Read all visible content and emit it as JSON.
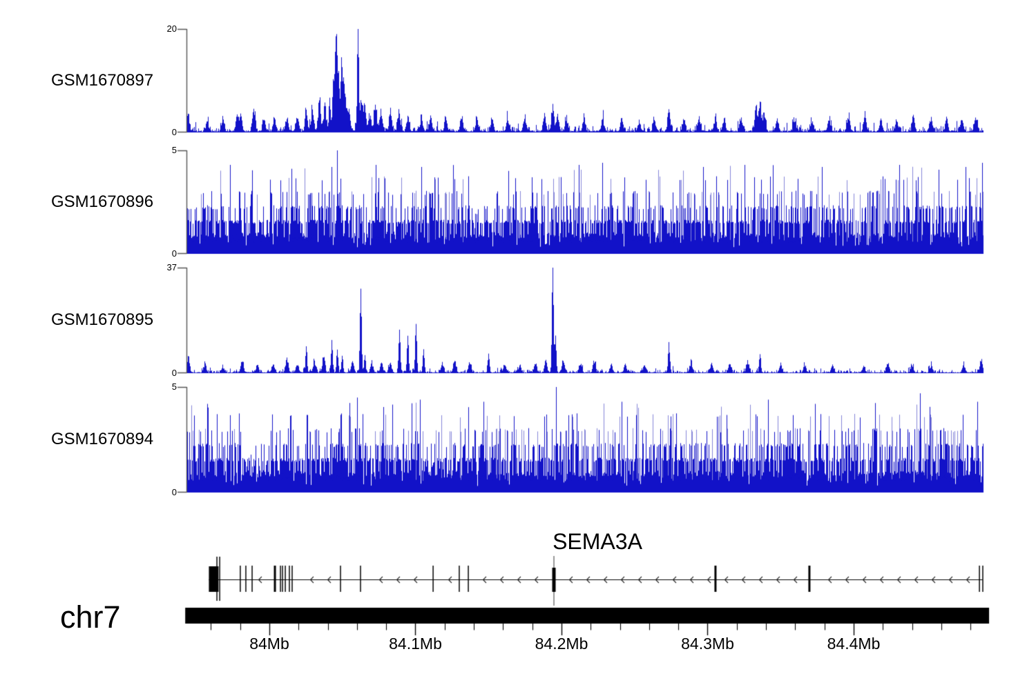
{
  "figure": {
    "background": "#ffffff"
  },
  "colors": {
    "bar_blue": "#1212c8",
    "bar_blue_light": "#8585d8",
    "axis_bracket": "#555555",
    "ink": "#000000",
    "anchor_line": "#777777"
  },
  "chromosome_axis": {
    "label": "chr7",
    "bar_start_mb": 83.9424,
    "bar_end_mb": 84.4927,
    "minor_tick_start_mb": 83.96,
    "minor_tick_interval_mb": 0.02,
    "minor_tick_count": 27,
    "ticks_major": [
      {
        "mb": 84.0,
        "label": "84Mb"
      },
      {
        "mb": 84.1,
        "label": "84.1Mb"
      },
      {
        "mb": 84.2,
        "label": "84.2Mb"
      },
      {
        "mb": 84.3,
        "label": "84.3Mb"
      },
      {
        "mb": 84.4,
        "label": "84.4Mb"
      }
    ]
  },
  "gene_track": {
    "name": "SEMA3A",
    "strand": "-",
    "gene_start_mb": 83.9586,
    "gene_end_mb": 84.4884,
    "utr_box": {
      "start_mb": 83.9586,
      "end_mb": 83.9652
    },
    "exons": [
      {
        "mb": 83.9641,
        "style": "tall"
      },
      {
        "mb": 83.966,
        "style": "tall"
      },
      {
        "mb": 83.9801,
        "style": "line"
      },
      {
        "mb": 83.9839,
        "style": "line"
      },
      {
        "mb": 83.9882,
        "style": "line"
      },
      {
        "mb": 84.0038,
        "style": "wide"
      },
      {
        "mb": 84.0076,
        "style": "line"
      },
      {
        "mb": 84.009,
        "style": "line"
      },
      {
        "mb": 84.0109,
        "style": "line"
      },
      {
        "mb": 84.0137,
        "style": "line"
      },
      {
        "mb": 84.0156,
        "style": "line"
      },
      {
        "mb": 84.0487,
        "style": "line"
      },
      {
        "mb": 84.0624,
        "style": "line"
      },
      {
        "mb": 84.1121,
        "style": "line"
      },
      {
        "mb": 84.13,
        "style": "line"
      },
      {
        "mb": 84.1362,
        "style": "line"
      },
      {
        "mb": 84.1948,
        "style": "anchor"
      },
      {
        "mb": 84.3054,
        "style": "wide"
      },
      {
        "mb": 84.3697,
        "style": "wide"
      },
      {
        "mb": 84.4861,
        "style": "line"
      },
      {
        "mb": 84.4884,
        "style": "line"
      }
    ]
  },
  "chart_data": {
    "type": "area",
    "x_axis": {
      "unit": "Mb",
      "chromosome": "chr7",
      "view_start_mb": 83.9433,
      "view_end_mb": 84.4889
    },
    "legend": "none",
    "grid": false,
    "tracks": [
      {
        "label": "GSM1670897",
        "type": "profile",
        "ylim": [
          0,
          20
        ],
        "ymax_label": "20",
        "ymin_label": "0",
        "seed": 11,
        "peaks": [
          [
            83.9442,
            3.2
          ],
          [
            83.9574,
            1.6
          ],
          [
            83.9679,
            2.2
          ],
          [
            83.9778,
            3.0
          ],
          [
            83.9801,
            2.6
          ],
          [
            83.9891,
            4.3
          ],
          [
            83.9962,
            2.0
          ],
          [
            84.0033,
            2.6
          ],
          [
            84.0118,
            2.3
          ],
          [
            84.0189,
            2.9
          ],
          [
            84.0251,
            3.4
          ],
          [
            84.0293,
            4.2
          ],
          [
            84.034,
            5.3
          ],
          [
            84.0378,
            4.6
          ],
          [
            84.0411,
            6.5
          ],
          [
            84.0435,
            9.0
          ],
          [
            84.0449,
            12.0
          ],
          [
            84.0459,
            16.0
          ],
          [
            84.0473,
            11.0
          ],
          [
            84.0492,
            14.0
          ],
          [
            84.0506,
            8.0
          ],
          [
            84.052,
            5.5
          ],
          [
            84.0544,
            3.5
          ],
          [
            84.0605,
            20.0
          ],
          [
            84.0629,
            5.5
          ],
          [
            84.0652,
            4.0
          ],
          [
            84.0686,
            3.0
          ],
          [
            84.0723,
            4.4
          ],
          [
            84.0761,
            3.2
          ],
          [
            84.0827,
            3.4
          ],
          [
            84.0884,
            3.7
          ],
          [
            84.0946,
            2.8
          ],
          [
            84.104,
            2.3
          ],
          [
            84.1102,
            2.7
          ],
          [
            84.1206,
            2.2
          ],
          [
            84.1314,
            2.4
          ],
          [
            84.1418,
            2.1
          ],
          [
            84.1522,
            2.3
          ],
          [
            84.1631,
            2.1
          ],
          [
            84.1749,
            2.4
          ],
          [
            84.1882,
            3.0
          ],
          [
            84.1938,
            4.6
          ],
          [
            84.1972,
            3.2
          ],
          [
            84.2033,
            2.2
          ],
          [
            84.2151,
            1.9
          ],
          [
            84.2279,
            2.1
          ],
          [
            84.2411,
            2.4
          ],
          [
            84.253,
            1.9
          ],
          [
            84.2634,
            2.1
          ],
          [
            84.2733,
            3.4
          ],
          [
            84.2837,
            2.2
          ],
          [
            84.2941,
            2.4
          ],
          [
            84.305,
            2.0
          ],
          [
            84.3111,
            2.4
          ],
          [
            84.3225,
            2.5
          ],
          [
            84.3329,
            4.2
          ],
          [
            84.3357,
            5.0
          ],
          [
            84.3386,
            3.2
          ],
          [
            84.3475,
            2.1
          ],
          [
            84.3593,
            2.2
          ],
          [
            84.3712,
            1.9
          ],
          [
            84.383,
            2.1
          ],
          [
            84.3962,
            2.7
          ],
          [
            84.4076,
            2.6
          ],
          [
            84.4184,
            2.0
          ],
          [
            84.4293,
            2.2
          ],
          [
            84.4407,
            2.4
          ],
          [
            84.4525,
            2.0
          ],
          [
            84.4634,
            2.2
          ],
          [
            84.4738,
            2.4
          ],
          [
            84.4833,
            2.6
          ]
        ]
      },
      {
        "label": "GSM1670896",
        "type": "dense",
        "ylim": [
          0,
          5
        ],
        "ymax_label": "5",
        "ymin_label": "0",
        "seed": 22,
        "spikes": [
          [
            84.0463,
            5.0
          ],
          [
            83.9731,
            4.3
          ],
          [
            84.0426,
            4.2
          ],
          [
            84.0728,
            4.3
          ],
          [
            84.104,
            4.2
          ],
          [
            84.2118,
            4.3
          ],
          [
            84.2279,
            4.4
          ],
          [
            84.2969,
            4.2
          ],
          [
            84.3253,
            4.3
          ],
          [
            84.3783,
            4.2
          ],
          [
            84.4312,
            4.3
          ],
          [
            84.4766,
            4.2
          ],
          [
            84.488,
            4.4
          ]
        ],
        "dips": [
          [
            84.08,
            84.0885
          ],
          [
            84.1385,
            84.1466
          ]
        ]
      },
      {
        "label": "GSM1670895",
        "type": "profile",
        "ylim": [
          0,
          37
        ],
        "ymax_label": "37",
        "ymin_label": "0",
        "seed": 33,
        "peaks": [
          [
            83.9442,
            5.5
          ],
          [
            83.9556,
            2.6
          ],
          [
            83.9679,
            2.0
          ],
          [
            83.9811,
            4.0
          ],
          [
            83.9915,
            2.4
          ],
          [
            84.0024,
            3.0
          ],
          [
            84.0118,
            5.0
          ],
          [
            84.0189,
            3.0
          ],
          [
            84.0251,
            9.0
          ],
          [
            84.0307,
            4.0
          ],
          [
            84.0369,
            5.0
          ],
          [
            84.0426,
            10.5
          ],
          [
            84.0463,
            8.0
          ],
          [
            84.0497,
            6.0
          ],
          [
            84.0567,
            3.5
          ],
          [
            84.0624,
            29.0
          ],
          [
            84.0652,
            6.0
          ],
          [
            84.07,
            3.0
          ],
          [
            84.0766,
            3.5
          ],
          [
            84.0827,
            3.0
          ],
          [
            84.0889,
            15.0
          ],
          [
            84.0946,
            13.0
          ],
          [
            84.1002,
            17.0
          ],
          [
            84.1054,
            8.0
          ],
          [
            84.1182,
            3.0
          ],
          [
            84.1267,
            4.5
          ],
          [
            84.1371,
            3.5
          ],
          [
            84.1499,
            6.5
          ],
          [
            84.1608,
            3.0
          ],
          [
            84.1712,
            2.5
          ],
          [
            84.182,
            3.0
          ],
          [
            84.1891,
            4.0
          ],
          [
            84.1938,
            37.0
          ],
          [
            84.1957,
            12.0
          ],
          [
            84.2009,
            4.5
          ],
          [
            84.2128,
            3.0
          ],
          [
            84.2222,
            3.5
          ],
          [
            84.234,
            2.5
          ],
          [
            84.2435,
            2.6
          ],
          [
            84.2563,
            2.2
          ],
          [
            84.2733,
            10.0
          ],
          [
            84.2884,
            3.5
          ],
          [
            84.3026,
            3.2
          ],
          [
            84.3149,
            2.6
          ],
          [
            84.3272,
            4.0
          ],
          [
            84.3357,
            6.5
          ],
          [
            84.3499,
            2.6
          ],
          [
            84.3664,
            2.2
          ],
          [
            84.3853,
            2.6
          ],
          [
            84.4066,
            2.2
          ],
          [
            84.4232,
            3.0
          ],
          [
            84.4397,
            2.6
          ],
          [
            84.453,
            2.2
          ],
          [
            84.4752,
            2.6
          ],
          [
            84.4871,
            4.6
          ]
        ]
      },
      {
        "label": "GSM1670894",
        "type": "dense",
        "ylim": [
          0,
          5
        ],
        "ymax_label": "5",
        "ymin_label": "0",
        "seed": 44,
        "spikes": [
          [
            84.1962,
            5.0
          ],
          [
            83.9574,
            4.2
          ],
          [
            84.06,
            4.5
          ],
          [
            84.1031,
            4.4
          ],
          [
            84.1466,
            4.3
          ],
          [
            84.2411,
            4.3
          ],
          [
            84.3414,
            4.4
          ],
          [
            84.3735,
            4.2
          ],
          [
            84.4454,
            4.7
          ],
          [
            84.4847,
            4.3
          ]
        ],
        "dips": [
          [
            83.981,
            84.001
          ],
          [
            84.107,
            84.122
          ]
        ]
      }
    ]
  }
}
